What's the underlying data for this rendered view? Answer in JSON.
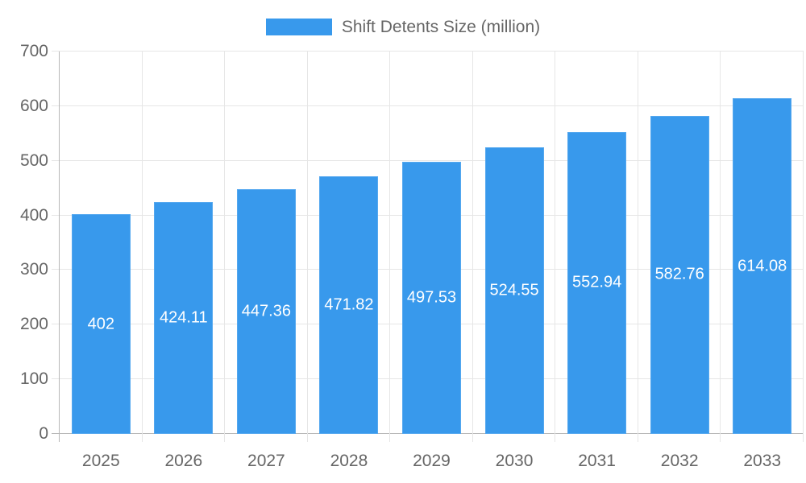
{
  "chart_data": {
    "type": "bar",
    "title": "",
    "series_name": "Shift Detents Size (million)",
    "categories": [
      "2025",
      "2026",
      "2027",
      "2028",
      "2029",
      "2030",
      "2031",
      "2032",
      "2033"
    ],
    "values": [
      402,
      424.11,
      447.36,
      471.82,
      497.53,
      524.55,
      552.94,
      582.76,
      614.08
    ],
    "value_labels": [
      "402",
      "424.11",
      "447.36",
      "471.82",
      "497.53",
      "524.55",
      "552.94",
      "582.76",
      "614.08"
    ],
    "xlabel": "",
    "ylabel": "",
    "ylim": [
      0,
      700
    ],
    "ytick_step": 100,
    "ytick_labels": [
      "0",
      "100",
      "200",
      "300",
      "400",
      "500",
      "600",
      "700"
    ],
    "grid": true,
    "legend_position": "top",
    "colors": {
      "bar": "#3899ec",
      "bar_edge": "#55a8ef",
      "grid": "#e6e6e6",
      "axis": "#b8b8b8",
      "tick_text": "#666666",
      "legend_text": "#666666",
      "bar_label_text": "#ffffff",
      "background": "#ffffff"
    }
  }
}
